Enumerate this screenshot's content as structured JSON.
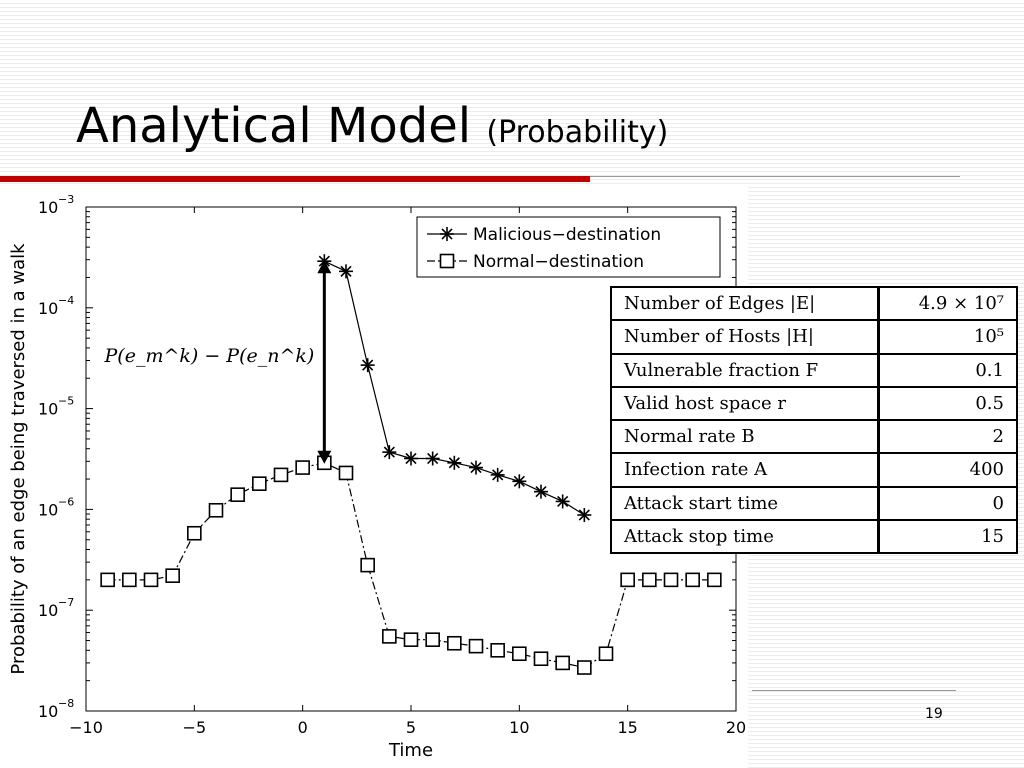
{
  "slide": {
    "title": "Analytical Model",
    "subtitle": "(Probability)",
    "page_number": "19"
  },
  "colors": {
    "accent_rule": "#c00000",
    "rule_gray": "#9a9a9a"
  },
  "annotation": {
    "label": "P(e_m^k) − P(e_n^k)",
    "from_point": [
      1,
      2.9e-06
    ],
    "to_point": [
      1,
      0.00029
    ]
  },
  "chart_data": {
    "type": "line",
    "xlabel": "Time",
    "ylabel": "Probability of an edge being traversed in a walk",
    "xlim": [
      -10,
      20
    ],
    "ylim": [
      1e-08,
      0.001
    ],
    "yscale": "log",
    "xticks": [
      -10,
      -5,
      0,
      5,
      10,
      15,
      20
    ],
    "xtick_labels": [
      "−10",
      "−5",
      "0",
      "5",
      "10",
      "15",
      "20"
    ],
    "yticks": [
      {
        "base": "10",
        "exp": "−8",
        "value": 1e-08
      },
      {
        "base": "10",
        "exp": "−7",
        "value": 1e-07
      },
      {
        "base": "10",
        "exp": "−6",
        "value": 1e-06
      },
      {
        "base": "10",
        "exp": "−5",
        "value": 1e-05
      },
      {
        "base": "10",
        "exp": "−4",
        "value": 0.0001
      },
      {
        "base": "10",
        "exp": "−3",
        "value": 0.001
      }
    ],
    "grid": false,
    "legend_position": "top-right",
    "series": [
      {
        "name": "Malicious−destination",
        "marker": "asterisk",
        "line_style": "solid",
        "x": [
          1,
          2,
          3,
          4,
          5,
          6,
          7,
          8,
          9,
          10,
          11,
          12,
          13
        ],
        "y": [
          0.00029,
          0.00023,
          2.7e-05,
          3.7e-06,
          3.2e-06,
          3.2e-06,
          2.9e-06,
          2.6e-06,
          2.2e-06,
          1.9e-06,
          1.5e-06,
          1.2e-06,
          8.8e-07
        ]
      },
      {
        "name": "Normal−destination",
        "marker": "square",
        "line_style": "dashdot",
        "x": [
          -9,
          -8,
          -7,
          -6,
          -5,
          -4,
          -3,
          -2,
          -1,
          0,
          1,
          2,
          3,
          4,
          5,
          6,
          7,
          8,
          9,
          10,
          11,
          12,
          13,
          14,
          15,
          16,
          17,
          18,
          19
        ],
        "y": [
          2e-07,
          2e-07,
          2e-07,
          2.2e-07,
          5.8e-07,
          9.8e-07,
          1.4e-06,
          1.8e-06,
          2.2e-06,
          2.6e-06,
          2.9e-06,
          2.3e-06,
          2.8e-07,
          5.5e-08,
          5.1e-08,
          5.1e-08,
          4.7e-08,
          4.4e-08,
          4e-08,
          3.7e-08,
          3.3e-08,
          3e-08,
          2.7e-08,
          3.7e-08,
          2e-07,
          2e-07,
          2e-07,
          2e-07,
          2e-07
        ]
      }
    ]
  },
  "parameters_table": {
    "rows": [
      {
        "label": "Number of Edges |E|",
        "value": "4.9 × 10⁷"
      },
      {
        "label": "Number of Hosts |H|",
        "value": "10⁵"
      },
      {
        "label": "Vulnerable fraction F",
        "value": "0.1"
      },
      {
        "label": "Valid host space r",
        "value": "0.5"
      },
      {
        "label": "Normal rate B",
        "value": "2"
      },
      {
        "label": "Infection rate A",
        "value": "400"
      },
      {
        "label": "Attack start time",
        "value": "0"
      },
      {
        "label": "Attack stop time",
        "value": "15"
      }
    ]
  }
}
